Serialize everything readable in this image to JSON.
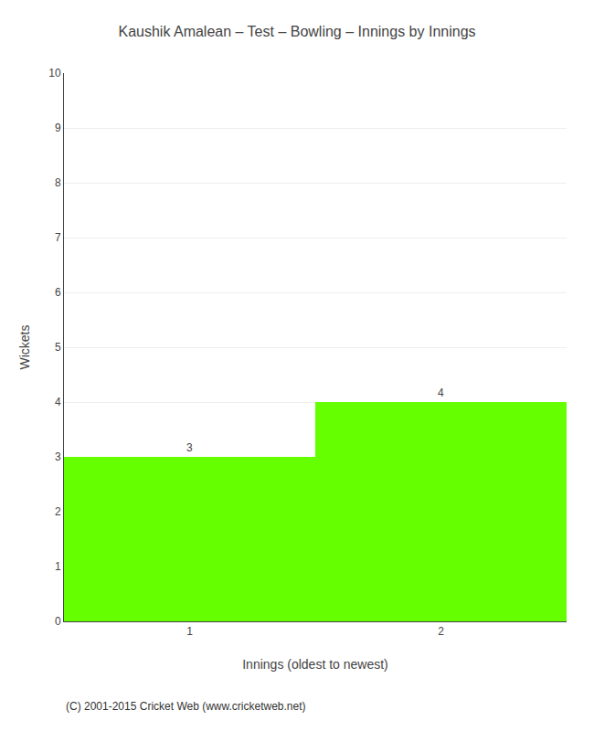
{
  "chart_data": {
    "type": "bar",
    "title": "Kaushik Amalean – Test – Bowling – Innings by Innings",
    "xlabel": "Innings (oldest to newest)",
    "ylabel": "Wickets",
    "x": [
      1,
      2
    ],
    "values": [
      3,
      4
    ],
    "color": "#66ff00",
    "data_labels": true,
    "xlim": [
      0.5,
      2.5
    ],
    "xticks": [
      1,
      2
    ],
    "ylim": [
      0,
      10
    ],
    "yticks": [
      0,
      1,
      2,
      3,
      4,
      5,
      6,
      7,
      8,
      9,
      10
    ],
    "grid": true,
    "annotations": [
      "(C) 2001-2015 Cricket Web (www.cricketweb.net)"
    ]
  }
}
